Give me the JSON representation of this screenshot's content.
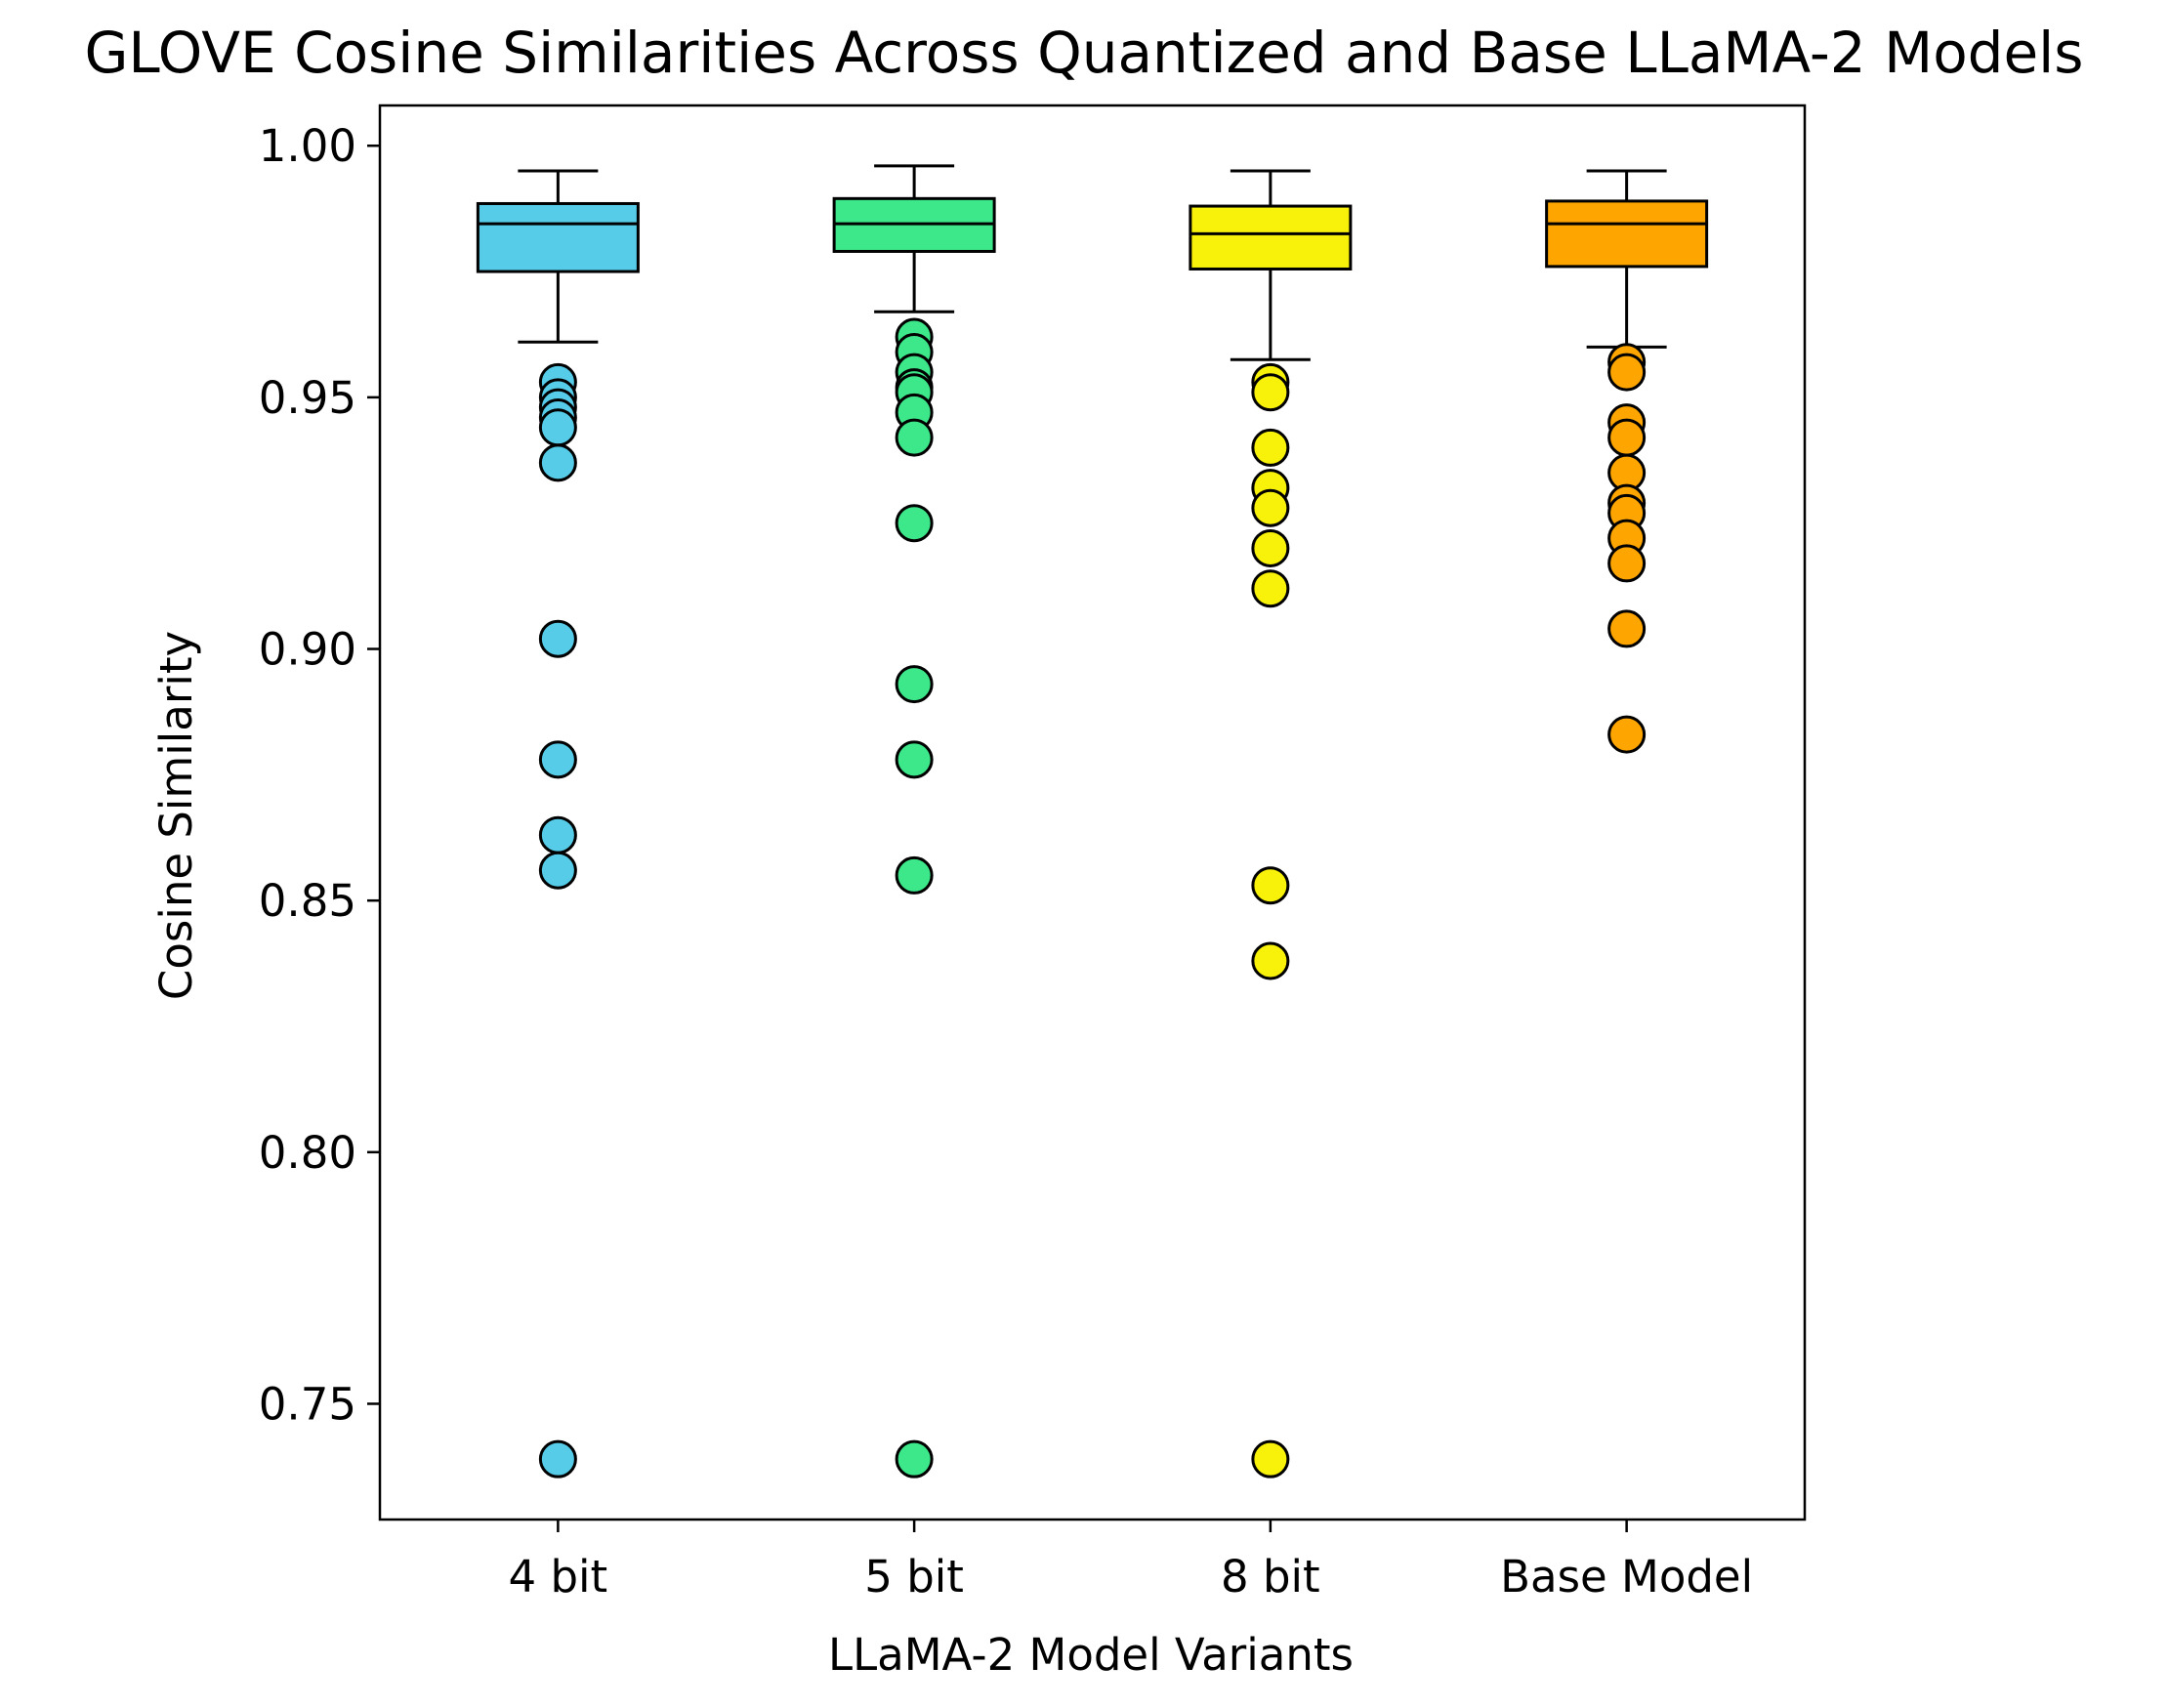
{
  "chart_data": {
    "type": "box",
    "title": "GLOVE Cosine Similarities Across Quantized and Base LLaMA-2 Models",
    "xlabel": "LLaMA-2 Model Variants",
    "ylabel": "Cosine Similarity",
    "ylim": [
      0.727,
      1.008
    ],
    "yticks": [
      0.75,
      0.8,
      0.85,
      0.9,
      0.95,
      1.0
    ],
    "ytick_labels": [
      "0.75",
      "0.80",
      "0.85",
      "0.90",
      "0.95",
      "1.00"
    ],
    "categories": [
      "4 bit",
      "5 bit",
      "8 bit",
      "Base Model"
    ],
    "series": [
      {
        "name": "4 bit",
        "color": "#56CCE8",
        "whisker_low": 0.961,
        "q1": 0.975,
        "median": 0.9845,
        "q3": 0.9885,
        "whisker_high": 0.995,
        "outliers": [
          0.953,
          0.95,
          0.948,
          0.946,
          0.944,
          0.937,
          0.902,
          0.878,
          0.863,
          0.856,
          0.739
        ]
      },
      {
        "name": "5 bit",
        "color": "#3DE88A",
        "whisker_low": 0.967,
        "q1": 0.979,
        "median": 0.9845,
        "q3": 0.9895,
        "whisker_high": 0.996,
        "outliers": [
          0.962,
          0.959,
          0.955,
          0.952,
          0.951,
          0.947,
          0.942,
          0.925,
          0.893,
          0.878,
          0.855,
          0.739
        ]
      },
      {
        "name": "8 bit",
        "color": "#F8F20A",
        "whisker_low": 0.9575,
        "q1": 0.9755,
        "median": 0.9825,
        "q3": 0.988,
        "whisker_high": 0.995,
        "outliers": [
          0.953,
          0.951,
          0.94,
          0.932,
          0.928,
          0.92,
          0.912,
          0.853,
          0.838,
          0.739
        ]
      },
      {
        "name": "Base Model",
        "color": "#FFA500",
        "whisker_low": 0.96,
        "q1": 0.976,
        "median": 0.9845,
        "q3": 0.989,
        "whisker_high": 0.995,
        "outliers": [
          0.957,
          0.955,
          0.945,
          0.942,
          0.935,
          0.929,
          0.927,
          0.922,
          0.917,
          0.904,
          0.883
        ]
      }
    ]
  }
}
